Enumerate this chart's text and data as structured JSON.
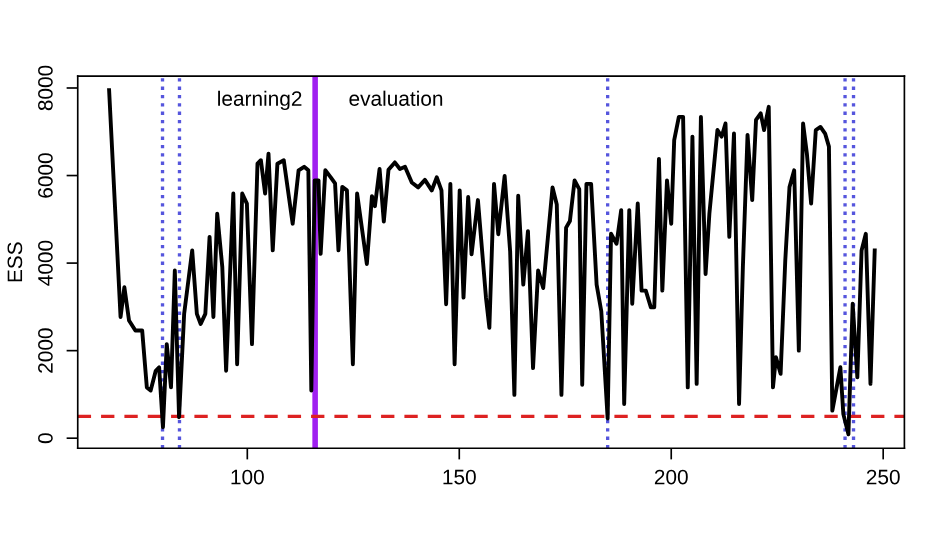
{
  "chart_data": {
    "type": "line",
    "ylabel": "ESS",
    "x": [
      67.4,
      70.1,
      71,
      72.1,
      73.6,
      75.2,
      76.3,
      77.2,
      78.4,
      79.2,
      80.1,
      81,
      82,
      82.9,
      83.9,
      85.1,
      87,
      88.1,
      89,
      90.1,
      91.1,
      92,
      92.9,
      94.1,
      95,
      96.7,
      97.6,
      98.8,
      99.9,
      101.1,
      102.4,
      103.2,
      104.2,
      105,
      106,
      107.1,
      108.6,
      110.7,
      112.1,
      113.4,
      114.4,
      115.1,
      115.9,
      116.8,
      117.3,
      118.4,
      119.6,
      120.7,
      121.5,
      122.4,
      123.5,
      124.9,
      125.9,
      128.2,
      129.4,
      130.1,
      131.2,
      132.2,
      133.3,
      134.8,
      136,
      137.2,
      138.8,
      140.3,
      141.9,
      143.5,
      144.7,
      145.8,
      146.9,
      147.9,
      148.9,
      150.1,
      151,
      152.1,
      152.9,
      154.4,
      156.3,
      157.1,
      158.2,
      159.2,
      160.7,
      162,
      163,
      163.9,
      165.1,
      166.2,
      167.4,
      168.6,
      169.8,
      172,
      173,
      174.1,
      175.2,
      176.1,
      177.2,
      178.3,
      179,
      180,
      181.1,
      182.4,
      183.5,
      185,
      185.8,
      187.1,
      188.2,
      188.9,
      190.1,
      190.8,
      192.1,
      193,
      194,
      195.2,
      196,
      197.1,
      197.9,
      199,
      200,
      200.7,
      201.8,
      202.8,
      203.9,
      205,
      206,
      207,
      208.1,
      209,
      210.9,
      211.9,
      212.8,
      213.7,
      214.8,
      216,
      216.9,
      218,
      219.1,
      220,
      221.1,
      221.9,
      223,
      224,
      224.7,
      225.8,
      226.9,
      227.9,
      229,
      230.1,
      231.1,
      232,
      233,
      234.1,
      235.2,
      236.3,
      237.2,
      238,
      239.9,
      240.6,
      241.8,
      242.8,
      243.9,
      244.9,
      245.9,
      247,
      248
    ],
    "series": [
      {
        "color": "#000000",
        "values": [
          7950,
          2770,
          3450,
          2690,
          2460,
          2460,
          1160,
          1090,
          1540,
          1620,
          250,
          2150,
          1160,
          3830,
          480,
          2840,
          4290,
          2840,
          2610,
          2840,
          4600,
          2770,
          5130,
          3910,
          1540,
          5590,
          1690,
          5590,
          5360,
          2150,
          6270,
          6350,
          5590,
          6500,
          4290,
          6270,
          6350,
          4900,
          6120,
          6200,
          6120,
          1090,
          5890,
          5890,
          4210,
          6120,
          5970,
          5820,
          4290,
          5740,
          5660,
          1690,
          5590,
          3980,
          5530,
          5300,
          6150,
          4950,
          6130,
          6300,
          6150,
          6200,
          5840,
          5730,
          5900,
          5660,
          5960,
          5660,
          3060,
          5810,
          1690,
          5660,
          3210,
          5510,
          4200,
          5440,
          3210,
          2520,
          5810,
          4660,
          5990,
          4270,
          990,
          5540,
          3510,
          4730,
          1600,
          3830,
          3430,
          5730,
          5340,
          990,
          4810,
          4960,
          5890,
          5690,
          1220,
          5810,
          5810,
          3510,
          2900,
          450,
          4670,
          4440,
          5210,
          780,
          5210,
          3070,
          5360,
          3370,
          3370,
          2990,
          2990,
          6380,
          3370,
          5890,
          4900,
          6810,
          7340,
          7340,
          1160,
          6890,
          1240,
          7340,
          3750,
          5130,
          7040,
          6890,
          7190,
          4600,
          6960,
          780,
          3910,
          6930,
          5440,
          7270,
          7420,
          7040,
          7570,
          1160,
          1850,
          1470,
          4060,
          5740,
          6120,
          2000,
          7190,
          6500,
          5360,
          7040,
          7110,
          6960,
          6660,
          630,
          1620,
          550,
          90,
          3070,
          1390,
          4290,
          4670,
          1240,
          4290
        ]
      }
    ],
    "xlim": [
      60,
      255
    ],
    "ylim": [
      -230,
      8270
    ],
    "xticks": [
      100,
      150,
      200,
      250
    ],
    "yticks": [
      0,
      2000,
      4000,
      6000,
      8000
    ],
    "grid": false,
    "marker": "none",
    "line_style": "solid",
    "ref_lines": [
      {
        "axis": "x",
        "value": 80,
        "color": "#5555dd",
        "line_style": "dotted"
      },
      {
        "axis": "x",
        "value": 84,
        "color": "#5555dd",
        "line_style": "dotted"
      },
      {
        "axis": "x",
        "value": 116,
        "color": "#a020f0",
        "line_style": "solid"
      },
      {
        "axis": "x",
        "value": 185,
        "color": "#5555dd",
        "line_style": "dotted"
      },
      {
        "axis": "x",
        "value": 241,
        "color": "#5555dd",
        "line_style": "dotted"
      },
      {
        "axis": "x",
        "value": 243,
        "color": "#5555dd",
        "line_style": "dotted"
      },
      {
        "axis": "y",
        "value": 500,
        "color": "#dd2222",
        "line_style": "dashed"
      }
    ],
    "annotations": [
      "learning2",
      "evaluation"
    ]
  }
}
